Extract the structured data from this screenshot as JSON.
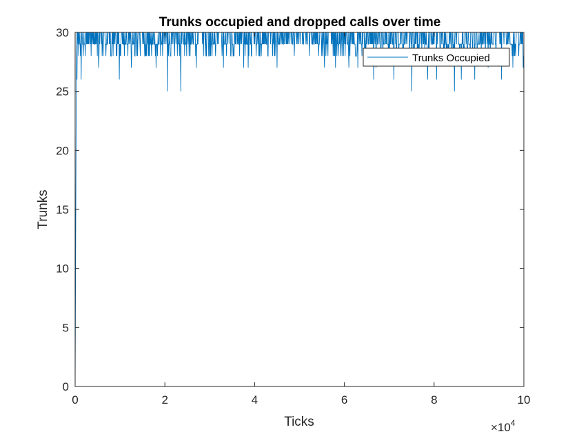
{
  "chart_data": {
    "type": "line",
    "title": "Trunks occupied and dropped calls over time",
    "xlabel": "Ticks",
    "ylabel": "Trunks",
    "xlim": [
      0,
      100000
    ],
    "ylim": [
      0,
      30
    ],
    "x_ticks": [
      0,
      20000,
      40000,
      60000,
      80000,
      100000
    ],
    "x_tick_labels": [
      "0",
      "2",
      "4",
      "6",
      "8",
      "10"
    ],
    "x_exponent_label": {
      "base": "×10",
      "exp": "4"
    },
    "y_ticks": [
      0,
      5,
      10,
      15,
      20,
      25,
      30
    ],
    "y_tick_labels": [
      "0",
      "5",
      "10",
      "15",
      "20",
      "25",
      "30"
    ],
    "grid": false,
    "legend_position": "top-right",
    "series": [
      {
        "name": "Trunks Occupied",
        "color": "#0072BD",
        "ramp": [
          [
            0,
            0
          ],
          [
            50,
            5
          ],
          [
            100,
            10
          ],
          [
            150,
            15
          ],
          [
            200,
            20
          ],
          [
            260,
            25
          ],
          [
            330,
            28
          ],
          [
            420,
            30
          ]
        ],
        "typical_range": [
          28,
          30
        ],
        "dips": [
          [
            300,
            26
          ],
          [
            1300,
            26
          ],
          [
            5200,
            27
          ],
          [
            9800,
            26
          ],
          [
            12500,
            27
          ],
          [
            18000,
            27
          ],
          [
            20500,
            25
          ],
          [
            23500,
            25
          ],
          [
            27000,
            27
          ],
          [
            33000,
            27
          ],
          [
            37500,
            27
          ],
          [
            38500,
            27
          ],
          [
            45000,
            27
          ],
          [
            55500,
            27
          ],
          [
            58000,
            27
          ],
          [
            61000,
            27
          ],
          [
            63000,
            27
          ],
          [
            66500,
            26
          ],
          [
            67000,
            27
          ],
          [
            71000,
            26
          ],
          [
            75000,
            25
          ],
          [
            78500,
            26
          ],
          [
            80500,
            26
          ],
          [
            84500,
            25
          ],
          [
            86000,
            26
          ],
          [
            89000,
            26
          ],
          [
            92000,
            27
          ],
          [
            95000,
            26
          ],
          [
            97500,
            27
          ],
          [
            99800,
            27
          ]
        ]
      }
    ]
  }
}
